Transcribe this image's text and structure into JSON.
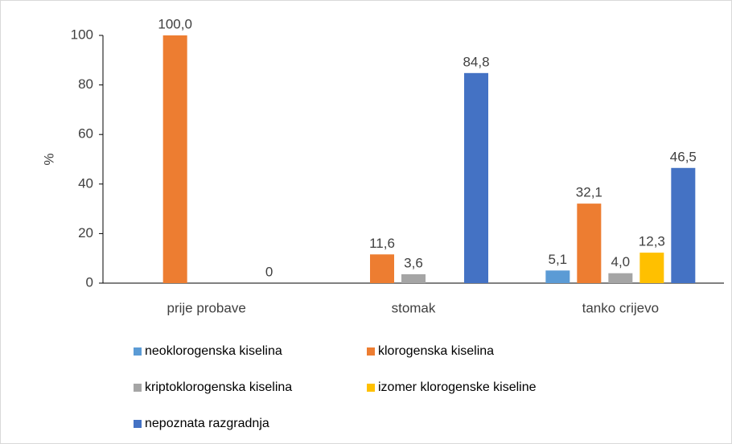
{
  "chart_data": {
    "type": "bar",
    "y_label": "%",
    "categories": [
      "prije probave",
      "stomak",
      "tanko crijevo"
    ],
    "series": [
      {
        "name": "neoklorogenska kiselina",
        "color": "#5b9bd5",
        "values": [
          null,
          null,
          5.1
        ],
        "value_labels": [
          null,
          null,
          "5,1"
        ]
      },
      {
        "name": "klorogenska kiselina",
        "color": "#ed7d31",
        "values": [
          100,
          11.6,
          32.1
        ],
        "value_labels": [
          "100,0",
          "11,6",
          "32,1"
        ]
      },
      {
        "name": "kriptoklorogenska kiselina",
        "color": "#a5a5a5",
        "values": [
          null,
          3.6,
          4.0
        ],
        "value_labels": [
          null,
          "3,6",
          "4,0"
        ]
      },
      {
        "name": "izomer klorogenske kiseline",
        "color": "#ffc000",
        "values": [
          null,
          null,
          12.3
        ],
        "value_labels": [
          null,
          null,
          "12,3"
        ]
      },
      {
        "name": "nepoznata razgradnja",
        "color": "#4472c4",
        "values": [
          0,
          84.8,
          46.5
        ],
        "value_labels": [
          "0",
          "84,8",
          "46,5"
        ]
      }
    ],
    "ylim": [
      0,
      100
    ],
    "yticks": [
      0,
      20,
      40,
      60,
      80,
      100
    ],
    "grid": false,
    "legend": "bottom"
  }
}
